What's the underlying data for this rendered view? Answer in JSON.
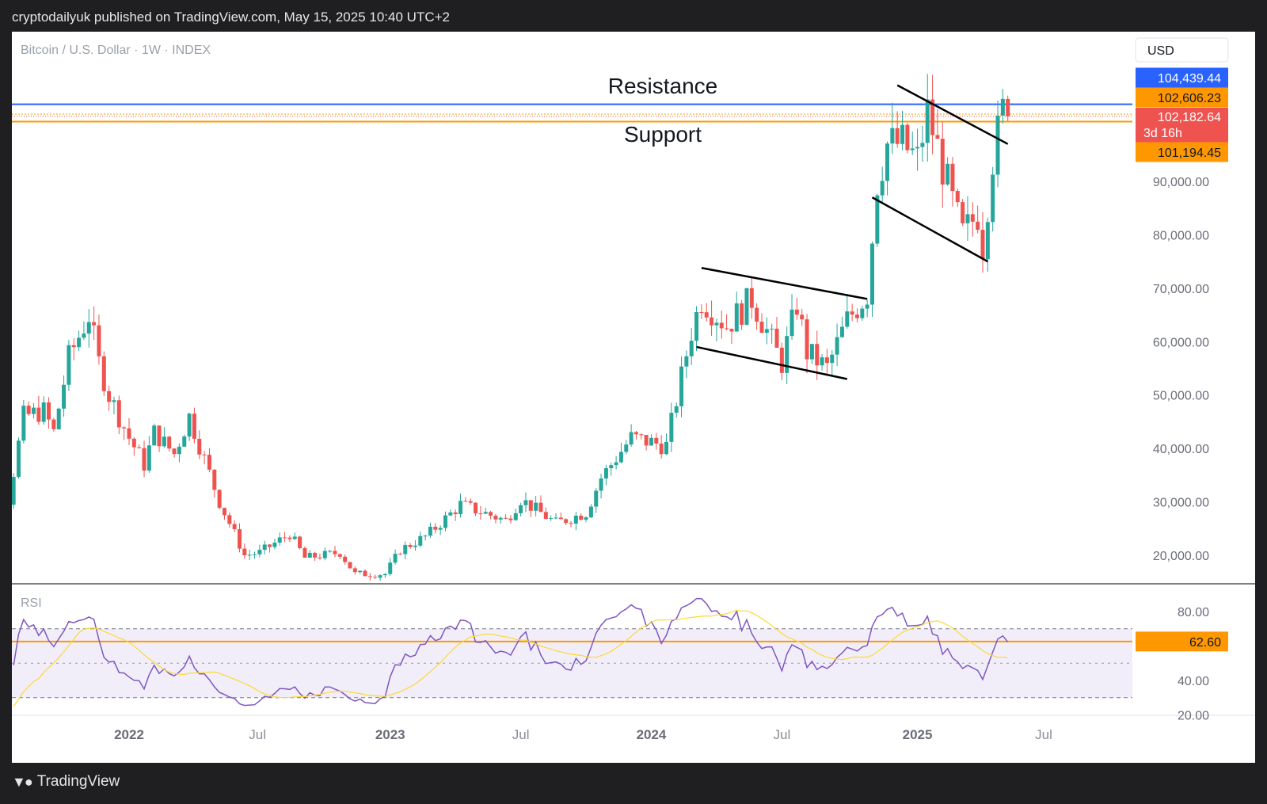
{
  "header": {
    "published": "cryptodailyuk published on TradingView.com, May 15, 2025 10:40 UTC+2"
  },
  "footer": {
    "logo_icon": "tradingview-logo-icon",
    "brand": "TradingView"
  },
  "chart_data": {
    "type": "candlestick",
    "symbol": "Bitcoin / U.S. Dollar · 1W · INDEX",
    "currency": "USD",
    "colors": {
      "up": "#26a69a",
      "down": "#ef5350",
      "resistance": "#2962ff",
      "support": "#ff9800",
      "trend": "#000000",
      "rsi": "#7e57c2",
      "rsi_ma": "#fdd835"
    },
    "y_ticks": [
      "90,000.00",
      "80,000.00",
      "70,000.00",
      "60,000.00",
      "50,000.00",
      "40,000.00",
      "30,000.00",
      "20,000.00"
    ],
    "x_ticks": [
      "2022",
      "Jul",
      "2023",
      "Jul",
      "2024",
      "Jul",
      "2025",
      "Jul"
    ],
    "ylim": [
      12000,
      118000
    ],
    "annotations": {
      "resistance": "Resistance",
      "support": "Support"
    },
    "levels": {
      "resistance": {
        "value": 104439.44,
        "label": "104,439.44"
      },
      "upper": {
        "value": 102606.23,
        "label": "102,606.23"
      },
      "last": {
        "value": 102182.64,
        "label": "102,182.64",
        "countdown": "3d 16h"
      },
      "support": {
        "value": 101194.45,
        "label": "101,194.45"
      }
    },
    "series": [
      {
        "name": "Price",
        "anchors": [
          [
            "2021-05-24",
            35000
          ],
          [
            "2021-06-21",
            31000
          ],
          [
            "2021-07-19",
            30500
          ],
          [
            "2021-08-09",
            46000
          ],
          [
            "2021-09-06",
            47000
          ],
          [
            "2021-09-20",
            43000
          ],
          [
            "2021-10-11",
            57000
          ],
          [
            "2021-11-08",
            65000
          ],
          [
            "2021-11-22",
            56000
          ],
          [
            "2021-12-06",
            50000
          ],
          [
            "2022-01-03",
            42000
          ],
          [
            "2022-01-24",
            37000
          ],
          [
            "2022-02-07",
            43000
          ],
          [
            "2022-03-07",
            39000
          ],
          [
            "2022-03-28",
            46000
          ],
          [
            "2022-05-09",
            30000
          ],
          [
            "2022-06-13",
            20000
          ],
          [
            "2022-07-04",
            20500
          ],
          [
            "2022-08-15",
            24000
          ],
          [
            "2022-09-05",
            19500
          ],
          [
            "2022-10-24",
            20500
          ],
          [
            "2022-11-14",
            16500
          ],
          [
            "2022-12-26",
            16500
          ],
          [
            "2023-01-16",
            21000
          ],
          [
            "2023-02-20",
            23500
          ],
          [
            "2023-03-13",
            26000
          ],
          [
            "2023-04-10",
            29500
          ],
          [
            "2023-06-12",
            26500
          ],
          [
            "2023-07-03",
            30500
          ],
          [
            "2023-08-21",
            26000
          ],
          [
            "2023-10-02",
            28000
          ],
          [
            "2023-10-23",
            34500
          ],
          [
            "2023-12-04",
            42000
          ],
          [
            "2024-01-22",
            40500
          ],
          [
            "2024-02-26",
            62000
          ],
          [
            "2024-03-11",
            68000
          ],
          [
            "2024-04-15",
            63000
          ],
          [
            "2024-05-20",
            68000
          ],
          [
            "2024-07-01",
            56000
          ],
          [
            "2024-07-22",
            67000
          ],
          [
            "2024-08-05",
            58000
          ],
          [
            "2024-09-02",
            55000
          ],
          [
            "2024-09-30",
            64000
          ],
          [
            "2024-10-28",
            69000
          ],
          [
            "2024-11-11",
            90000
          ],
          [
            "2024-11-25",
            97000
          ],
          [
            "2024-12-16",
            97000
          ],
          [
            "2025-01-06",
            94000
          ],
          [
            "2025-01-20",
            103000
          ],
          [
            "2025-02-24",
            86000
          ],
          [
            "2025-03-10",
            80000
          ],
          [
            "2025-03-31",
            84000
          ],
          [
            "2025-04-07",
            78000
          ],
          [
            "2025-04-21",
            94500
          ],
          [
            "2025-05-05",
            103000
          ],
          [
            "2025-05-12",
            102182
          ]
        ]
      },
      {
        "name": "RSI",
        "value": 62.6,
        "value_label": "62.60",
        "ticks": [
          "80.00",
          "40.00",
          "20.00"
        ],
        "bands": [
          70,
          30
        ]
      }
    ],
    "trendlines": [
      [
        [
          "2024-03-11",
          73800
        ],
        [
          "2024-10-28",
          68000
        ]
      ],
      [
        [
          "2024-03-04",
          59000
        ],
        [
          "2024-09-30",
          53000
        ]
      ],
      [
        [
          "2024-12-09",
          108000
        ],
        [
          "2025-05-12",
          97000
        ]
      ],
      [
        [
          "2024-11-04",
          87000
        ],
        [
          "2025-04-14",
          75000
        ]
      ]
    ]
  }
}
